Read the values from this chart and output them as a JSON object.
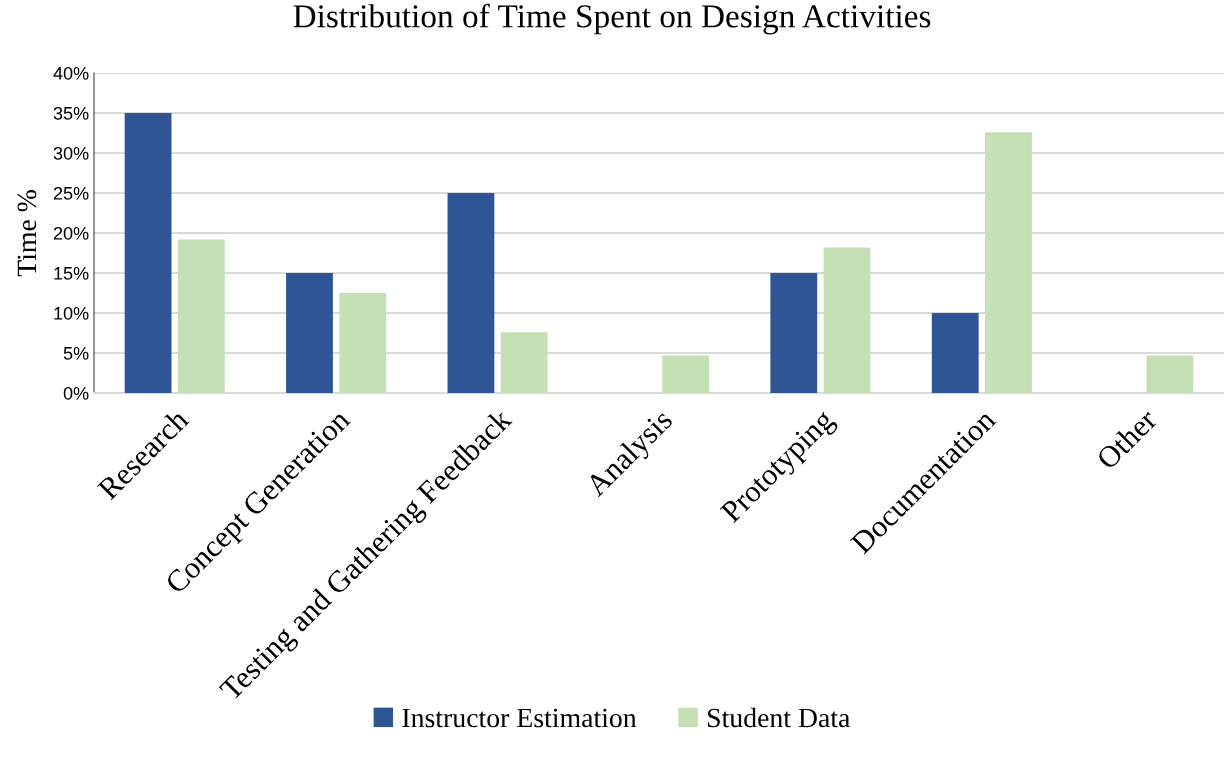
{
  "chart_data": {
    "type": "bar",
    "title": "Distribution of Time Spent on Design Activities",
    "ylabel": "Time %",
    "categories": [
      "Research",
      "Concept Generation",
      "Testing and Gathering Feedback",
      "Analysis",
      "Prototyping",
      "Documentation",
      "Other"
    ],
    "series": [
      {
        "name": "Instructor Estimation",
        "color": "#2f5597",
        "values": [
          35,
          15,
          25,
          0,
          15,
          10,
          0
        ]
      },
      {
        "name": "Student Data",
        "color": "#c5e0b4",
        "values": [
          19.2,
          12.5,
          7.6,
          4.7,
          18.2,
          32.6,
          4.7
        ]
      }
    ],
    "ylim": [
      0,
      40
    ],
    "yticks": [
      {
        "value": 0,
        "label": "0%"
      },
      {
        "value": 5,
        "label": "5%"
      },
      {
        "value": 10,
        "label": "10%"
      },
      {
        "value": 15,
        "label": "15%"
      },
      {
        "value": 20,
        "label": "20%"
      },
      {
        "value": 25,
        "label": "25%"
      },
      {
        "value": 30,
        "label": "30%"
      },
      {
        "value": 35,
        "label": "35%"
      },
      {
        "value": 40,
        "label": "40%"
      }
    ],
    "grid": "y",
    "legend": "bottom"
  }
}
